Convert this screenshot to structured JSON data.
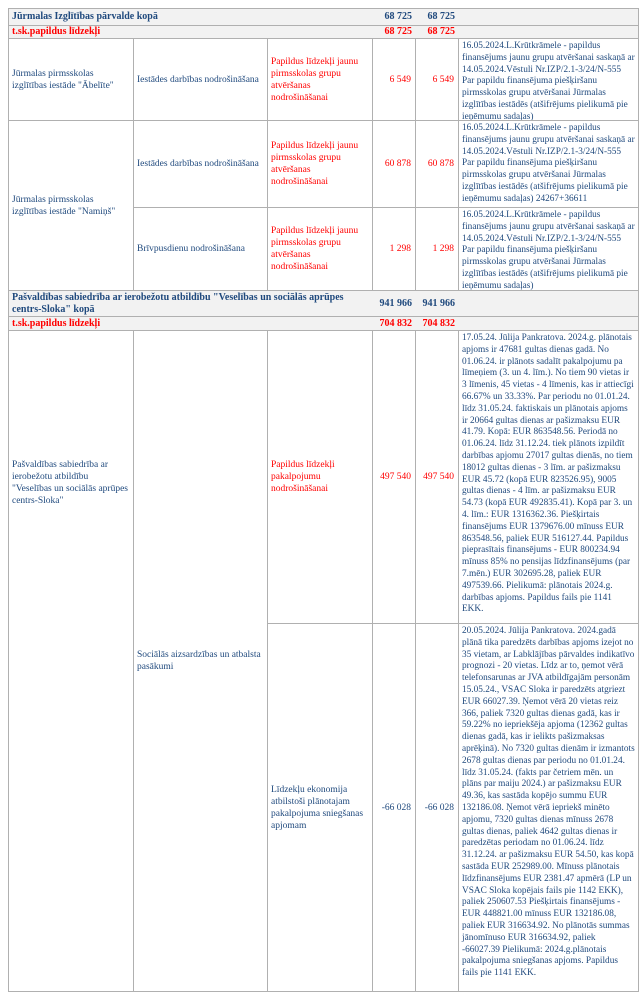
{
  "document": {
    "type": "budget-amendments-table",
    "language": "lv"
  },
  "colors": {
    "text_blue": "#1f497d",
    "text_red": "#ff0000",
    "row_shade": "#f2f2f2",
    "grid_line": "#b0b0b0"
  },
  "parvalde": {
    "total": {
      "label": "Jūrmalas Izglītības pārvalde kopā",
      "v1": "68 725",
      "v2": "68 725"
    },
    "papildus": {
      "label": "t.sk.papildus līdzekļi",
      "v1": "68 725",
      "v2": "68 725"
    },
    "abelite": {
      "institution": "Jūrmalas pirmsskolas izglītības iestāde \"Ābelīte\"",
      "activity": "Iestādes darbības nodrošināšana",
      "purpose": "Papildus līdzekļi jaunu pirmsskolas grupu atvēršanas nodrošināšanai",
      "v1": "6 549",
      "v2": "6 549",
      "note": "16.05.2024.L.Krūtkrāmele - papildus finansējums jaunu grupu atvēršanai saskaņā ar 14.05.2024.Vēstuli Nr.IZP/2.1-3/24/N-555 Par papildu finansējuma piešķiršanu pirmsskolas grupu atvēršanai Jūrmalas izglītības iestādēs (atšifrējums pielikumā pie ieņēmumu sadaļas)"
    },
    "namins": {
      "institution": "Jūrmalas pirmsskolas izglītības iestāde \"Namiņš\"",
      "rows": [
        {
          "activity": "Iestādes darbības nodrošināšana",
          "purpose": "Papildus līdzekļi jaunu pirmsskolas grupu atvēršanas nodrošināšanai",
          "v1": "60 878",
          "v2": "60 878",
          "note": "16.05.2024.L.Krūtkrāmele - papildus finansējums jaunu grupu atvēršanai saskaņā ar 14.05.2024.Vēstuli Nr.IZP/2.1-3/24/N-555 Par papildu finansējuma piešķiršanu pirmsskolas grupu atvēršanai Jūrmalas izglītības iestādēs (atšifrējums pielikumā pie ieņēmumu sadaļas) 24267+36611"
        },
        {
          "activity": "Brīvpusdienu nodrošināšana",
          "purpose": "Papildus līdzekļi jaunu pirmsskolas grupu atvēršanas nodrošināšanai",
          "v1": "1 298",
          "v2": "1 298",
          "note": "16.05.2024.L.Krūtkrāmele - papildus finansējums jaunu grupu atvēršanai saskaņā ar 14.05.2024.Vēstuli Nr.IZP/2.1-3/24/N-555 Par papildu finansējuma piešķiršanu pirmsskolas grupu atvēršanai Jūrmalas izglītības iestādēs (atšifrējums pielikumā pie ieņēmumu sadaļas)"
        }
      ]
    }
  },
  "sloka": {
    "total": {
      "label": "Pašvaldības sabiedrība ar ierobežotu atbildību \"Veselības un sociālās aprūpes centrs-Sloka\" kopā",
      "v1": "941 966",
      "v2": "941 966"
    },
    "papildus": {
      "label": "t.sk.papildus līdzekļi",
      "v1": "704 832",
      "v2": "704 832"
    },
    "institution": "Pašvaldības sabiedrība ar ierobežotu atbildību \"Veselības un sociālās aprūpes centrs-Sloka\"",
    "category": "Sociālās aizsardzības un atbalsta pasākumi",
    "rows": [
      {
        "purpose": "Papildus līdzekļi pakalpojumu nodrošināšanai",
        "v1": "497 540",
        "v2": "497 540",
        "note": "17.05.24.  Jūlija Pankratova.  2024.g. plānotais apjoms ir 47681 gultas dienas gadā. No 01.06.24. ir plānots sadalīt pakalpojumu pa līmeņiem (3. un 4. līm.). No tiem 90 vietas ir 3 līmenis, 45 vietas - 4 līmenis, kas ir attiecīgi 66.67% un 33.33%. Par periodu no 01.01.24. līdz 31.05.24. faktiskais un plānotais apjoms ir 20664 gultas dienas ar pašizmaksu EUR 41.79. Kopā: EUR 863548.56. Periodā no 01.06.24. līdz 31.12.24. tiek plānots izpildīt darbības apjomu 27017 gultas dienās, no tiem 18012 gultas dienas - 3 līm. ar pašizmaksu EUR 45.72 (kopā EUR 823526.95), 9005 gultas dienas - 4 līm. ar pašizmaksu EUR 54.73 (kopā EUR 492835.41). Kopā par 3. un 4. līm.: EUR 1316362.36. Piešķirtais finansējums EUR 1379676.00 mīnuss EUR 863548.56, paliek EUR 516127.44. Papildus pieprasītais finansējums - EUR 800234.94 mīnuss  85% no pensijas līdzfinansējums (par 7.mēn.) EUR 302695.28, paliek EUR 497539.66. Pielikumā: plānotais 2024.g. darbības apjoms. Papildus fails pie 1141 EKK."
      },
      {
        "purpose": "Līdzekļu ekonomija atbilstoši plānotajam pakalpojuma sniegšanas apjomam",
        "v1": "-66 028",
        "v2": "-66 028",
        "note": "20.05.2024.  Jūlija Pankratova.  2024.gadā plānā tika paredzēts darbības apjoms izejot no 35 vietam, ar Labklājības pārvaldes indikatīvo prognozi - 20 vietas. Līdz ar to, ņemot vērā telefonsarunas ar JVA atbildīgajām personām 15.05.24., VSAC Sloka ir paredzēts atgriezt EUR 66027.39. Ņemot vērā  20 vietas reiz 366, paliek 7320 gultas dienas gadā, kas ir 59.22% no iepriekšēja apjoma (12362 gultas dienas gadā, kas ir ielikts pašizmaksas aprēķinā). No 7320 gultas dienām ir izmantots 2678 gultas dienas par periodu no 01.01.24. līdz  31.05.24. (fakts par četriem mēn. un plāns par maiju 2024.) ar pašizmaksu EUR 49.36, kas sastāda kopējo summu EUR 132186.08. Ņemot vērā iepriekš minēto apjomu, 7320 gultas dienas mīnuss 2678 gultas dienas, paliek 4642 gultas dienas ir paredzētas periodam no 01.06.24. līdz 31.12.24. ar pašizmaksu EUR 54.50, kas kopā sastāda EUR 252989.00. Mīnuss plānotais līdzfinansējums EUR 2381.47 apmērā (LP un VSAC Sloka kopējais fails pie 1142 EKK), paliek 250607.53 Piešķirtais finansējums - EUR 448821.00 mīnuss EUR 132186.08, paliek EUR 316634.92. No plānotās summas jānomīnuso EUR 316634.92,  paliek -66027.39 Pielikumā: 2024.g.plānotais pakalpojuma sniegšanas apjoms. Papildus fails pie 1141 EKK."
      }
    ]
  }
}
